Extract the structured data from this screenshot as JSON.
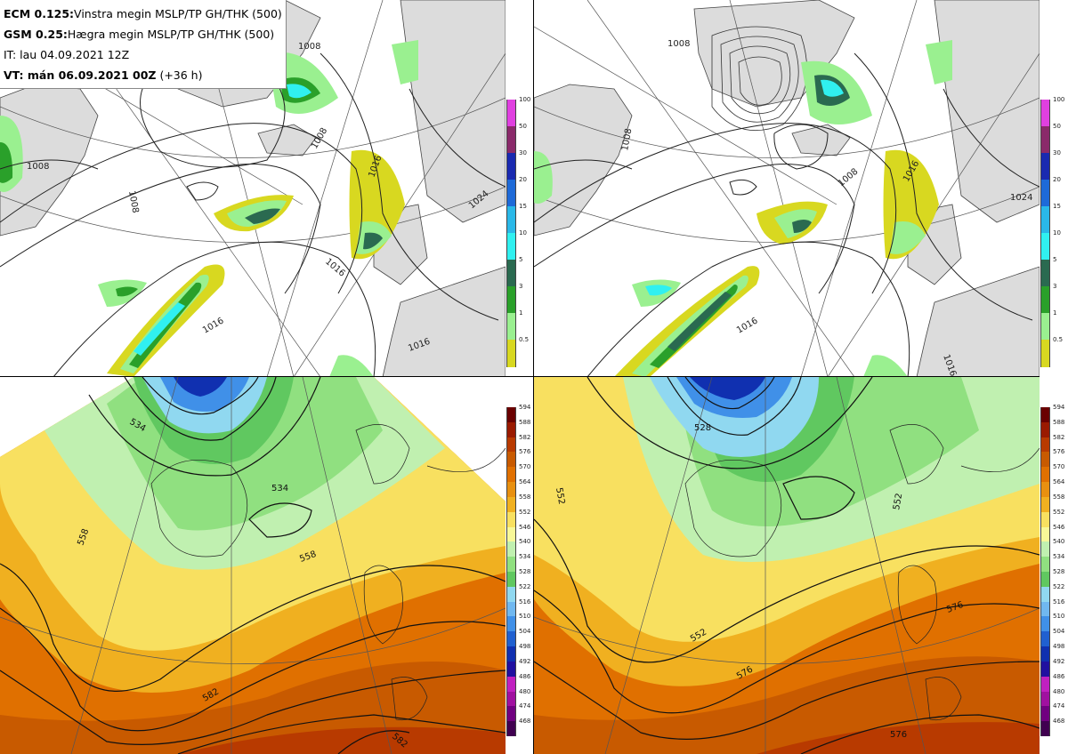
{
  "header": {
    "line1_model": "ECM 0.125:",
    "line1_desc": "Vinstra megin MSLP/TP GH/THK (500)",
    "line2_model": "GSM 0.25:",
    "line2_desc": "Hægra megin MSLP/TP GH/THK (500)",
    "line3": "IT: lau 04.09.2021 12Z",
    "line4_label": "VT: mán 06.09.2021 00Z",
    "line4_extra": "(+36 h)"
  },
  "precip_scale": {
    "labels": [
      "100",
      "50",
      "30",
      "20",
      "15",
      "10",
      "5",
      "3",
      "1",
      "0.5"
    ],
    "colors": [
      "#e040e0",
      "#8a2a6a",
      "#1a2ab0",
      "#1e6ad8",
      "#2ab8e8",
      "#30f0f0",
      "#2a6a50",
      "#2aa02a",
      "#9af090",
      "#d8d820"
    ]
  },
  "thickness_scale": {
    "labels": [
      "594",
      "588",
      "582",
      "576",
      "570",
      "564",
      "558",
      "552",
      "546",
      "540",
      "534",
      "528",
      "522",
      "516",
      "510",
      "504",
      "498",
      "492",
      "486",
      "480",
      "474",
      "468"
    ],
    "colors": [
      "#6a0000",
      "#9a1a00",
      "#b83a00",
      "#c85a00",
      "#e07000",
      "#e89010",
      "#f0b020",
      "#f8e060",
      "#f8f898",
      "#c0f0b0",
      "#90e080",
      "#60c860",
      "#90d8f0",
      "#70b8f0",
      "#4090e8",
      "#2060d0",
      "#1030b0",
      "#2010a0",
      "#c020c0",
      "#a010a0",
      "#700080",
      "#400050"
    ]
  },
  "isobar_labels": {
    "left": [
      "1008",
      "1008",
      "1008",
      "1016",
      "1016",
      "1024",
      "1016",
      "1016",
      "1008"
    ],
    "right": [
      "1008",
      "1008",
      "1016",
      "1024",
      "1008",
      "1016",
      "1016"
    ]
  },
  "thickness_labels": {
    "left": [
      "534",
      "534",
      "558",
      "558",
      "582",
      "582"
    ],
    "right": [
      "528",
      "552",
      "552",
      "552",
      "576",
      "576",
      "576"
    ]
  }
}
